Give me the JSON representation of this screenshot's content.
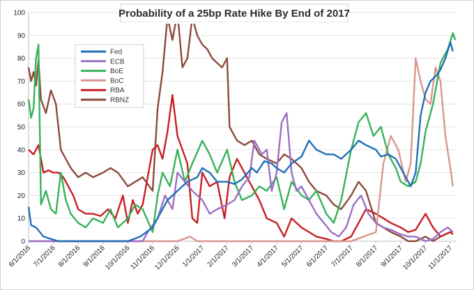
{
  "chart_data": {
    "type": "line",
    "title": "Probability of a 25bp Rate Hike By End of 2017",
    "xlabel": "",
    "ylabel": "",
    "ylim": [
      0,
      100
    ],
    "y_ticks": [
      "0",
      "10",
      "20",
      "30",
      "40",
      "50",
      "60",
      "70",
      "80",
      "90",
      "100"
    ],
    "x_ticks": [
      "6/1/2016",
      "7/1/2016",
      "8/1/2016",
      "9/1/2016",
      "10/1/2016",
      "11/1/2016",
      "12/1/2016",
      "1/1/2017",
      "2/1/2017",
      "3/1/2017",
      "4/1/2017",
      "5/1/2017",
      "6/1/2017",
      "7/1/2017",
      "8/1/2017",
      "9/1/2017",
      "10/1/2017",
      "11/1/2017"
    ],
    "xlim": [
      0,
      17.25
    ],
    "grid": "horizontal",
    "legend_position": "top-left",
    "series": [
      {
        "name": "Fed",
        "color": "#1f6fb5",
        "points": [
          [
            0,
            15
          ],
          [
            0.1,
            7
          ],
          [
            0.3,
            6
          ],
          [
            0.6,
            2
          ],
          [
            0.9,
            1
          ],
          [
            1.2,
            0
          ],
          [
            2,
            0
          ],
          [
            3,
            0
          ],
          [
            4,
            0
          ],
          [
            4.5,
            2
          ],
          [
            5,
            6
          ],
          [
            5.3,
            12
          ],
          [
            5.6,
            18
          ],
          [
            6,
            22
          ],
          [
            6.4,
            26
          ],
          [
            6.8,
            28
          ],
          [
            7,
            32
          ],
          [
            7.3,
            30
          ],
          [
            7.6,
            26
          ],
          [
            8,
            26
          ],
          [
            8.3,
            25
          ],
          [
            8.6,
            27
          ],
          [
            9,
            32
          ],
          [
            9.2,
            30
          ],
          [
            9.5,
            35
          ],
          [
            9.8,
            34
          ],
          [
            10,
            32
          ],
          [
            10.3,
            30
          ],
          [
            10.6,
            34
          ],
          [
            11,
            37
          ],
          [
            11.3,
            44
          ],
          [
            11.6,
            40
          ],
          [
            12,
            38
          ],
          [
            12.3,
            38
          ],
          [
            12.6,
            36
          ],
          [
            13,
            40
          ],
          [
            13.3,
            44
          ],
          [
            13.6,
            42
          ],
          [
            14,
            40
          ],
          [
            14.2,
            37
          ],
          [
            14.5,
            38
          ],
          [
            14.8,
            36
          ],
          [
            15.1,
            30
          ],
          [
            15.4,
            24
          ],
          [
            15.6,
            30
          ],
          [
            15.8,
            55
          ],
          [
            16,
            65
          ],
          [
            16.2,
            70
          ],
          [
            16.4,
            72
          ],
          [
            16.6,
            75
          ],
          [
            16.8,
            80
          ],
          [
            17,
            87
          ],
          [
            17.1,
            83
          ]
        ]
      },
      {
        "name": "ECB",
        "color": "#9b6fc4",
        "points": [
          [
            0,
            0
          ],
          [
            1,
            0
          ],
          [
            2,
            0
          ],
          [
            3,
            0
          ],
          [
            4,
            0
          ],
          [
            4.6,
            0
          ],
          [
            4.8,
            4
          ],
          [
            5.2,
            10
          ],
          [
            5.5,
            20
          ],
          [
            5.8,
            14
          ],
          [
            6,
            30
          ],
          [
            6.3,
            26
          ],
          [
            6.6,
            22
          ],
          [
            7,
            18
          ],
          [
            7.3,
            12
          ],
          [
            7.6,
            14
          ],
          [
            8,
            16
          ],
          [
            8.3,
            18
          ],
          [
            8.6,
            24
          ],
          [
            8.9,
            28
          ],
          [
            9.1,
            44
          ],
          [
            9.4,
            38
          ],
          [
            9.6,
            40
          ],
          [
            9.8,
            22
          ],
          [
            10,
            30
          ],
          [
            10.2,
            52
          ],
          [
            10.4,
            56
          ],
          [
            10.6,
            30
          ],
          [
            10.8,
            22
          ],
          [
            11,
            24
          ],
          [
            11.3,
            18
          ],
          [
            11.6,
            12
          ],
          [
            11.9,
            8
          ],
          [
            12.2,
            4
          ],
          [
            12.5,
            2
          ],
          [
            12.8,
            6
          ],
          [
            13.1,
            16
          ],
          [
            13.4,
            20
          ],
          [
            13.7,
            12
          ],
          [
            14,
            8
          ],
          [
            14.3,
            6
          ],
          [
            14.6,
            5
          ],
          [
            15,
            3
          ],
          [
            15.3,
            2
          ],
          [
            15.6,
            2
          ],
          [
            16,
            0
          ],
          [
            16.3,
            1
          ],
          [
            16.6,
            4
          ],
          [
            16.9,
            6
          ],
          [
            17.1,
            4
          ]
        ]
      },
      {
        "name": "BoE",
        "color": "#36b15a",
        "points": [
          [
            0,
            62
          ],
          [
            0.1,
            54
          ],
          [
            0.2,
            58
          ],
          [
            0.3,
            80
          ],
          [
            0.4,
            86
          ],
          [
            0.5,
            16
          ],
          [
            0.7,
            22
          ],
          [
            0.9,
            14
          ],
          [
            1.1,
            12
          ],
          [
            1.3,
            30
          ],
          [
            1.5,
            18
          ],
          [
            1.7,
            12
          ],
          [
            2,
            8
          ],
          [
            2.3,
            6
          ],
          [
            2.6,
            10
          ],
          [
            3,
            8
          ],
          [
            3.3,
            14
          ],
          [
            3.6,
            6
          ],
          [
            4,
            10
          ],
          [
            4.3,
            16
          ],
          [
            4.6,
            14
          ],
          [
            5,
            4
          ],
          [
            5.2,
            20
          ],
          [
            5.4,
            30
          ],
          [
            5.7,
            24
          ],
          [
            6,
            40
          ],
          [
            6.3,
            26
          ],
          [
            6.6,
            34
          ],
          [
            7,
            44
          ],
          [
            7.3,
            38
          ],
          [
            7.6,
            30
          ],
          [
            8,
            40
          ],
          [
            8.3,
            26
          ],
          [
            8.6,
            18
          ],
          [
            9,
            20
          ],
          [
            9.3,
            24
          ],
          [
            9.6,
            22
          ],
          [
            10,
            28
          ],
          [
            10.3,
            14
          ],
          [
            10.6,
            26
          ],
          [
            11,
            20
          ],
          [
            11.3,
            18
          ],
          [
            11.6,
            22
          ],
          [
            12,
            12
          ],
          [
            12.3,
            8
          ],
          [
            12.6,
            18
          ],
          [
            13,
            40
          ],
          [
            13.3,
            52
          ],
          [
            13.6,
            56
          ],
          [
            13.9,
            46
          ],
          [
            14.2,
            50
          ],
          [
            14.5,
            38
          ],
          [
            14.8,
            32
          ],
          [
            15,
            26
          ],
          [
            15.3,
            24
          ],
          [
            15.6,
            26
          ],
          [
            15.8,
            34
          ],
          [
            16,
            48
          ],
          [
            16.3,
            60
          ],
          [
            16.6,
            78
          ],
          [
            16.9,
            84
          ],
          [
            17.1,
            91
          ],
          [
            17.2,
            88
          ]
        ]
      },
      {
        "name": "BoC",
        "color": "#d9968f",
        "points": [
          [
            0,
            0
          ],
          [
            2,
            0
          ],
          [
            4,
            0
          ],
          [
            6,
            0
          ],
          [
            6.5,
            2
          ],
          [
            6.8,
            0
          ],
          [
            7,
            0
          ],
          [
            8,
            0
          ],
          [
            9,
            0
          ],
          [
            10,
            0
          ],
          [
            11,
            0
          ],
          [
            12,
            0
          ],
          [
            13,
            0
          ],
          [
            14,
            4
          ],
          [
            14.3,
            34
          ],
          [
            14.6,
            46
          ],
          [
            14.9,
            40
          ],
          [
            15.2,
            26
          ],
          [
            15.4,
            34
          ],
          [
            15.6,
            80
          ],
          [
            15.8,
            70
          ],
          [
            16,
            62
          ],
          [
            16.2,
            60
          ],
          [
            16.4,
            76
          ],
          [
            16.6,
            70
          ],
          [
            16.8,
            46
          ],
          [
            17,
            32
          ],
          [
            17.1,
            24
          ]
        ]
      },
      {
        "name": "RBA",
        "color": "#c81e23",
        "points": [
          [
            0,
            40
          ],
          [
            0.2,
            38
          ],
          [
            0.4,
            42
          ],
          [
            0.6,
            30
          ],
          [
            0.8,
            31
          ],
          [
            1.0,
            30
          ],
          [
            1.2,
            30
          ],
          [
            1.4,
            28
          ],
          [
            1.6,
            24
          ],
          [
            1.8,
            20
          ],
          [
            2,
            14
          ],
          [
            2.3,
            12
          ],
          [
            2.6,
            12
          ],
          [
            2.9,
            11
          ],
          [
            3.2,
            14
          ],
          [
            3.5,
            10
          ],
          [
            3.8,
            20
          ],
          [
            4,
            8
          ],
          [
            4.2,
            18
          ],
          [
            4.4,
            12
          ],
          [
            4.6,
            16
          ],
          [
            5,
            40
          ],
          [
            5.2,
            42
          ],
          [
            5.4,
            36
          ],
          [
            5.6,
            48
          ],
          [
            5.8,
            64
          ],
          [
            6,
            46
          ],
          [
            6.2,
            40
          ],
          [
            6.4,
            34
          ],
          [
            6.6,
            10
          ],
          [
            6.8,
            8
          ],
          [
            7,
            30
          ],
          [
            7.3,
            24
          ],
          [
            7.6,
            26
          ],
          [
            7.9,
            10
          ],
          [
            8.1,
            28
          ],
          [
            8.4,
            36
          ],
          [
            8.7,
            30
          ],
          [
            9,
            24
          ],
          [
            9.3,
            18
          ],
          [
            9.6,
            10
          ],
          [
            10,
            8
          ],
          [
            10.3,
            2
          ],
          [
            10.6,
            10
          ],
          [
            11,
            6
          ],
          [
            11.3,
            4
          ],
          [
            11.6,
            2
          ],
          [
            12,
            1
          ],
          [
            12.3,
            0
          ],
          [
            12.6,
            0
          ],
          [
            13,
            2
          ],
          [
            13.3,
            8
          ],
          [
            13.6,
            14
          ],
          [
            14,
            12
          ],
          [
            14.3,
            10
          ],
          [
            14.6,
            8
          ],
          [
            15,
            6
          ],
          [
            15.3,
            4
          ],
          [
            15.6,
            5
          ],
          [
            16,
            12
          ],
          [
            16.3,
            6
          ],
          [
            16.6,
            2
          ],
          [
            17,
            4
          ],
          [
            17.1,
            3
          ]
        ]
      },
      {
        "name": "RBNZ",
        "color": "#8b4a3a",
        "points": [
          [
            0,
            76
          ],
          [
            0.1,
            70
          ],
          [
            0.2,
            74
          ],
          [
            0.3,
            68
          ],
          [
            0.4,
            79
          ],
          [
            0.5,
            62
          ],
          [
            0.7,
            56
          ],
          [
            0.9,
            66
          ],
          [
            1.1,
            60
          ],
          [
            1.3,
            40
          ],
          [
            1.5,
            36
          ],
          [
            1.7,
            32
          ],
          [
            2,
            28
          ],
          [
            2.3,
            30
          ],
          [
            2.6,
            28
          ],
          [
            3,
            30
          ],
          [
            3.3,
            32
          ],
          [
            3.6,
            30
          ],
          [
            4,
            24
          ],
          [
            4.3,
            26
          ],
          [
            4.6,
            28
          ],
          [
            5,
            22
          ],
          [
            5.2,
            58
          ],
          [
            5.4,
            74
          ],
          [
            5.6,
            98
          ],
          [
            5.8,
            88
          ],
          [
            6,
            100
          ],
          [
            6.2,
            76
          ],
          [
            6.4,
            80
          ],
          [
            6.6,
            98
          ],
          [
            6.8,
            90
          ],
          [
            7,
            86
          ],
          [
            7.2,
            84
          ],
          [
            7.4,
            80
          ],
          [
            7.6,
            78
          ],
          [
            7.8,
            76
          ],
          [
            8,
            80
          ],
          [
            8.1,
            50
          ],
          [
            8.4,
            44
          ],
          [
            8.7,
            42
          ],
          [
            9,
            44
          ],
          [
            9.3,
            38
          ],
          [
            9.6,
            36
          ],
          [
            10,
            34
          ],
          [
            10.3,
            38
          ],
          [
            10.6,
            36
          ],
          [
            11,
            32
          ],
          [
            11.3,
            26
          ],
          [
            11.6,
            22
          ],
          [
            12,
            20
          ],
          [
            12.3,
            16
          ],
          [
            12.6,
            14
          ],
          [
            13,
            20
          ],
          [
            13.3,
            26
          ],
          [
            13.6,
            22
          ],
          [
            14,
            8
          ],
          [
            14.3,
            6
          ],
          [
            14.6,
            4
          ],
          [
            15,
            2
          ],
          [
            15.3,
            0
          ],
          [
            15.6,
            0
          ],
          [
            16,
            2
          ],
          [
            16.3,
            0
          ],
          [
            16.6,
            2
          ],
          [
            17,
            4
          ],
          [
            17.1,
            3
          ]
        ]
      }
    ]
  }
}
